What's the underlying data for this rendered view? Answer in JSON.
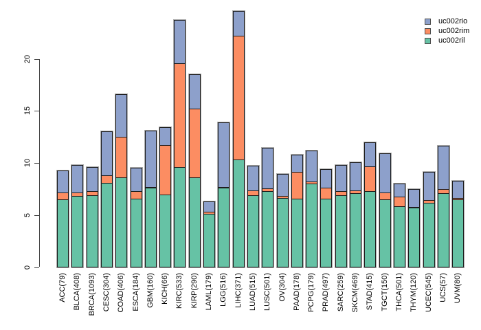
{
  "figure": {
    "title": "",
    "background": "#ffffff",
    "axis_color": "#444444",
    "bar_border_color": "#1c1c1c",
    "bar_outline_color": "#aaaaaa",
    "text_color": "#000000"
  },
  "legend": {
    "position": "top-right",
    "items": [
      {
        "label": "uc002rio",
        "color": "#8DA0CB"
      },
      {
        "label": "uc002rim",
        "color": "#FC8D62"
      },
      {
        "label": "uc002ril",
        "color": "#66C2A5"
      }
    ]
  },
  "chart_data": {
    "type": "bar",
    "stacked": true,
    "title": "",
    "xlabel": "",
    "ylabel": "",
    "grid": false,
    "ylim": [
      0,
      24.8
    ],
    "yticks": [
      0,
      5,
      10,
      15,
      20
    ],
    "legend_position": "top-right",
    "categories": [
      "ACC(79)",
      "BLCA(408)",
      "BRCA(1093)",
      "CESC(304)",
      "COAD(406)",
      "ESCA(184)",
      "GBM(160)",
      "KICH(66)",
      "KIRC(533)",
      "KIRP(290)",
      "LAML(179)",
      "LGG(516)",
      "LIHC(371)",
      "LUAD(515)",
      "LUSC(501)",
      "OV(304)",
      "PAAD(178)",
      "PCPG(179)",
      "PRAD(497)",
      "SARC(259)",
      "SKCM(469)",
      "STAD(415)",
      "TGCT(150)",
      "THCA(501)",
      "THYM(120)",
      "UCEC(545)",
      "UCS(57)",
      "UVM(80)"
    ],
    "series": [
      {
        "name": "uc002ril",
        "color": "#66C2A5",
        "values": [
          6.4,
          6.75,
          6.85,
          8.0,
          8.55,
          6.5,
          7.55,
          6.85,
          9.5,
          8.45,
          5.05,
          7.55,
          10.25,
          6.8,
          7.2,
          6.6,
          6.5,
          7.95,
          6.45,
          6.8,
          7.0,
          7.2,
          6.35,
          5.7,
          5.55,
          6.15,
          7.05,
          6.4
        ]
      },
      {
        "name": "uc002rim",
        "color": "#FC8D62",
        "values": [
          0.7,
          0.4,
          0.45,
          0.8,
          3.95,
          0.8,
          0.1,
          4.85,
          10.05,
          6.7,
          0.25,
          0.1,
          11.95,
          0.55,
          0.35,
          0.25,
          2.65,
          0.25,
          1.15,
          0.45,
          0.35,
          2.45,
          0.75,
          1.0,
          0.15,
          0.3,
          0.45,
          0.2
        ]
      },
      {
        "name": "uc002rio",
        "color": "#8DA0CB",
        "values": [
          2.2,
          2.7,
          2.35,
          4.3,
          4.15,
          2.3,
          5.5,
          1.8,
          4.2,
          3.4,
          1.05,
          6.3,
          2.45,
          2.45,
          3.95,
          2.15,
          1.7,
          3.05,
          1.85,
          2.6,
          2.75,
          2.4,
          3.85,
          1.35,
          1.8,
          2.75,
          4.2,
          1.75
        ]
      }
    ]
  }
}
